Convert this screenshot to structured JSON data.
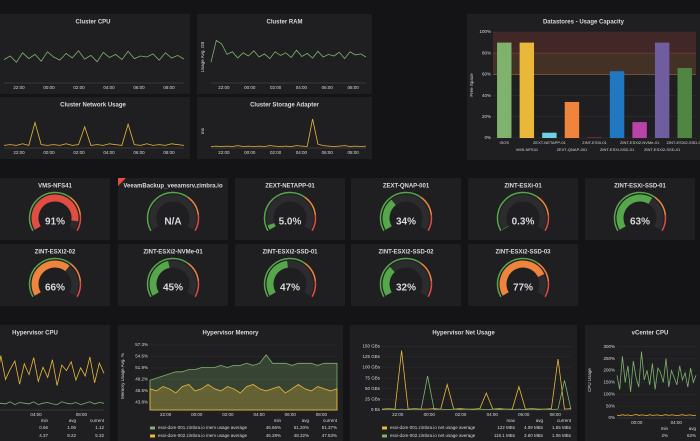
{
  "panels": [
    {
      "title": "Cluster CPU",
      "ylim": [
        0,
        100
      ],
      "xticks": [
        "22:00",
        "00:00",
        "02:00",
        "04:00",
        "06:00",
        "08:00"
      ],
      "series": [
        {
          "color": "#7eb26d",
          "values": [
            45,
            52,
            40,
            58,
            47,
            55,
            42,
            60,
            50,
            44,
            57,
            48,
            62,
            46,
            53,
            41,
            59,
            49,
            55,
            45,
            61,
            47,
            52,
            50,
            56,
            44,
            58,
            48,
            53,
            46
          ]
        }
      ]
    },
    {
      "title": "Cluster RAM",
      "ylabel": "Usage Avg. GB",
      "ylim": [
        0,
        100
      ],
      "xticks": [
        "22:00",
        "00:00",
        "02:00",
        "04:00",
        "06:00",
        "08:00"
      ],
      "series": [
        {
          "color": "#7eb26d",
          "values": [
            40,
            82,
            75,
            55,
            60,
            48,
            58,
            52,
            62,
            50,
            56,
            47,
            60,
            53,
            58,
            49,
            63,
            51,
            57,
            48,
            61,
            50,
            55,
            52,
            59,
            47,
            60,
            54,
            56,
            50
          ]
        }
      ]
    },
    {
      "title": "Cluster Network Usage",
      "ylim": [
        0,
        40
      ],
      "xticks": [
        "22:00",
        "00:00",
        "02:00",
        "04:00",
        "06:00",
        "08:00"
      ],
      "series": [
        {
          "color": "#eab839",
          "values": [
            3,
            4,
            3,
            5,
            3,
            30,
            4,
            3,
            4,
            3,
            5,
            3,
            4,
            25,
            3,
            4,
            3,
            5,
            4,
            3,
            28,
            4,
            3,
            5,
            3,
            4,
            3,
            5,
            4,
            3
          ]
        }
      ]
    },
    {
      "title": "Cluster Storage Adapter",
      "ylabel": "ms",
      "ylim": [
        0,
        70
      ],
      "xticks": [
        "22:00",
        "00:00",
        "02:00",
        "04:00",
        "06:00",
        "08:00"
      ],
      "series": [
        {
          "color": "#eab839",
          "values": [
            3,
            4,
            3,
            4,
            3,
            5,
            3,
            4,
            3,
            4,
            3,
            5,
            4,
            3,
            4,
            3,
            5,
            4,
            3,
            60,
            8,
            5,
            4,
            3,
            4,
            5,
            3,
            4,
            3,
            4
          ]
        }
      ]
    },
    {
      "title": "Hypervisor CPU",
      "ylim": [
        0,
        100
      ],
      "xticks": [
        "00:00",
        "04:00",
        "08:00"
      ],
      "series": [
        {
          "color": "#eab839",
          "values": [
            55,
            70,
            40,
            75,
            50,
            65,
            35,
            80,
            45,
            60,
            72,
            38,
            68,
            52,
            77,
            42,
            63,
            48,
            74,
            36,
            66,
            58,
            71,
            44,
            62,
            50,
            78,
            40,
            69,
            54
          ]
        },
        {
          "color": "#7eb26d",
          "values": [
            8,
            10,
            7,
            12,
            9,
            11,
            8,
            10,
            9,
            12,
            8,
            11,
            10,
            9,
            12,
            8,
            10,
            11,
            9,
            8,
            12,
            10,
            9,
            11,
            8,
            10,
            12,
            9,
            11,
            10
          ]
        }
      ],
      "legend": {
        "columns": [
          "min",
          "avg",
          "current"
        ],
        "rows": [
          {
            "values": [
              "0.66",
              "1.06",
              "1.12"
            ]
          },
          {
            "values": [
              "4.37",
              "9.22",
              "5.32"
            ]
          }
        ]
      }
    },
    {
      "title": "Hypervisor Memory",
      "ylabel": "Memory Usage Avg. %",
      "fill": true,
      "ylim": [
        42,
        58
      ],
      "yticks": [
        {
          "value": 57.3,
          "label": "57.3%"
        },
        {
          "value": 54.6,
          "label": "54.6%"
        },
        {
          "value": 51.9,
          "label": "51.9%"
        },
        {
          "value": 49.2,
          "label": "49.2%"
        },
        {
          "value": 46.5,
          "label": "46.5%"
        },
        {
          "value": 43.8,
          "label": "43.8%"
        }
      ],
      "xticks": [
        "22:00",
        "00:00",
        "02:00",
        "04:00",
        "06:00",
        "08:00"
      ],
      "series": [
        {
          "color": "#7eb26d",
          "values": [
            49,
            49.5,
            50,
            50.5,
            51,
            51,
            51.5,
            51.5,
            52,
            52,
            52,
            52.5,
            52,
            52.5,
            52.5,
            53,
            52.5,
            53,
            55,
            53,
            53,
            53,
            52.5,
            53,
            53,
            53,
            52.5,
            53,
            53,
            53
          ]
        },
        {
          "color": "#eab839",
          "values": [
            47,
            46.5,
            47.5,
            47,
            46,
            47.5,
            48,
            46.5,
            47,
            48,
            47,
            46.5,
            47.5,
            47,
            46,
            47.5,
            48,
            47,
            46.5,
            47,
            47.5,
            46,
            47,
            48,
            47,
            46.5,
            47.5,
            47,
            46.5,
            47
          ]
        }
      ],
      "legend": {
        "columns": [
          "min",
          "avg",
          "current"
        ],
        "rows": [
          {
            "name": "esxi-dom-001.zimbra.io mem usage average",
            "values": [
              "46.66%",
              "51.20%",
              "51.37%"
            ]
          },
          {
            "name": "esxi-dom-002.zimbra.io mem usage average",
            "values": [
              "46.28%",
              "48.32%",
              "47.53%"
            ]
          }
        ]
      }
    },
    {
      "title": "Hypervisor Net Usage",
      "ylim": [
        0,
        160
      ],
      "yticks": [
        {
          "value": 150,
          "label": "150 GBs"
        },
        {
          "value": 125,
          "label": "125 GBs"
        },
        {
          "value": 100,
          "label": "100 GBs"
        },
        {
          "value": 75,
          "label": "75 GBs"
        },
        {
          "value": 50,
          "label": "50 GBs"
        },
        {
          "value": 25,
          "label": "25 GBs"
        },
        {
          "value": 0,
          "label": "0 Bs"
        }
      ],
      "xticks": [
        "22:00",
        "00:00",
        "02:00",
        "04:00",
        "06:00",
        "08:00"
      ],
      "series": [
        {
          "color": "#eab839",
          "values": [
            2,
            3,
            2,
            140,
            2,
            3,
            2,
            2,
            3,
            2,
            60,
            2,
            3,
            2,
            2,
            3,
            40,
            2,
            3,
            2,
            2,
            55,
            2,
            3,
            2,
            2,
            3,
            120,
            2,
            3
          ]
        },
        {
          "color": "#7eb26d",
          "values": [
            1,
            2,
            1,
            2,
            1,
            2,
            1,
            80,
            1,
            2,
            1,
            2,
            1,
            2,
            1,
            2,
            1,
            2,
            1,
            2,
            1,
            2,
            1,
            2,
            1,
            2,
            1,
            2,
            70,
            1
          ]
        }
      ],
      "legend": {
        "columns": [
          "max",
          "avg",
          "current"
        ],
        "rows": [
          {
            "name": "esxi-dom-001.zimbra.io net usage average",
            "values": [
              "122 MBs",
              "4.09 MBs",
              "1.55 MBs"
            ]
          },
          {
            "name": "esxi-dom-002.zimbra.io net usage average",
            "values": [
              "118.1 MBs",
              "3.60 MBs",
              "1.06 MBs"
            ]
          }
        ]
      }
    },
    {
      "title": "vCenter CPU",
      "ylabel": "CPU Usage",
      "ylim": [
        0,
        320
      ],
      "yticks": [
        {
          "value": 300,
          "label": "300%"
        },
        {
          "value": 250,
          "label": "250%"
        },
        {
          "value": 200,
          "label": "200%"
        },
        {
          "value": 150,
          "label": "150%"
        },
        {
          "value": 100,
          "label": "100%"
        },
        {
          "value": 50,
          "label": "50%"
        },
        {
          "value": 0,
          "label": "0%"
        }
      ],
      "xticks": [
        "00:00",
        "04:00"
      ],
      "series": [
        {
          "color": "#7eb26d",
          "values": [
            180,
            120,
            260,
            150,
            220,
            110,
            240,
            170,
            130,
            280,
            160,
            200,
            140,
            230,
            120,
            210,
            190,
            150,
            250,
            130,
            200,
            170,
            140,
            220,
            160,
            190,
            130,
            210,
            150,
            180
          ]
        },
        {
          "color": "#eab839",
          "values": [
            12,
            10,
            14,
            11,
            13,
            10,
            12,
            15,
            11,
            13,
            12,
            10,
            14,
            11,
            12,
            13,
            10,
            12,
            14,
            11,
            13,
            12,
            10,
            12,
            14,
            11,
            12,
            13,
            10,
            12
          ]
        }
      ],
      "legend": {
        "columns": [
          "min",
          "avg"
        ],
        "rows": [
          {
            "values": [
              "2%",
              "62%"
            ]
          }
        ]
      }
    }
  ],
  "chart_data": {
    "type": "bar",
    "title": "Datastores - Usage Capacity",
    "ylabel": "Free Space",
    "categories": [
      "ISOS",
      "VMS-NFS41",
      "ZEXT-NETAPP-01",
      "ZEXT-QNAP-001",
      "ZINT-ESXi-01",
      "ZINT-ESXi-SSD-01",
      "ZINT-ESXi2-NVMe-01",
      "ZINT-ESXi2-SSD-01",
      "ZINT-ESXi2-SSD-03"
    ],
    "values": [
      90,
      90,
      5,
      34,
      0.3,
      63,
      15,
      90,
      66
    ],
    "colors": [
      "#7eb26d",
      "#eab839",
      "#6ed0e0",
      "#ef843c",
      "#e24d42",
      "#1f78c1",
      "#ba43a9",
      "#705da0",
      "#508642"
    ],
    "ylim": [
      0,
      100
    ],
    "yticks": [
      {
        "value": 0,
        "label": "0%"
      },
      {
        "value": 20,
        "label": "20%"
      },
      {
        "value": 40,
        "label": "40%"
      },
      {
        "value": 60,
        "label": "60%"
      },
      {
        "value": 80,
        "label": "80%"
      },
      {
        "value": 100,
        "label": "100%"
      }
    ],
    "thresholds": [
      60,
      80
    ],
    "grid": true
  },
  "gauge_thresholds": [
    65,
    85
  ],
  "gauges": [
    {
      "title": "VMS-NFS41",
      "value": 91,
      "label": "91%"
    },
    {
      "title": "VeeamBackup_veeamsrv.zimbra.io",
      "value": null,
      "label": "N/A"
    },
    {
      "title": "ZEXT-NETAPP-01",
      "value": 5.0,
      "label": "5.0%"
    },
    {
      "title": "ZEXT-QNAP-001",
      "value": 34,
      "label": "34%"
    },
    {
      "title": "ZINT-ESXi-01",
      "value": 0.3,
      "label": "0.3%"
    },
    {
      "title": "ZINT-ESXi-SSD-01",
      "value": 63,
      "label": "63%"
    },
    {
      "title": "ZINT-ESXi2-02",
      "value": 66,
      "label": "66%"
    },
    {
      "title": "ZINT-ESXi2-NVMe-01",
      "value": 45,
      "label": "45%"
    },
    {
      "title": "ZINT-ESXi2-SSD-01",
      "value": 47,
      "label": "47%"
    },
    {
      "title": "ZINT-ESXi2-SSD-02",
      "value": 32,
      "label": "32%"
    },
    {
      "title": "ZINT-ESXi2-SSD-03",
      "value": 77,
      "label": "77%"
    }
  ]
}
